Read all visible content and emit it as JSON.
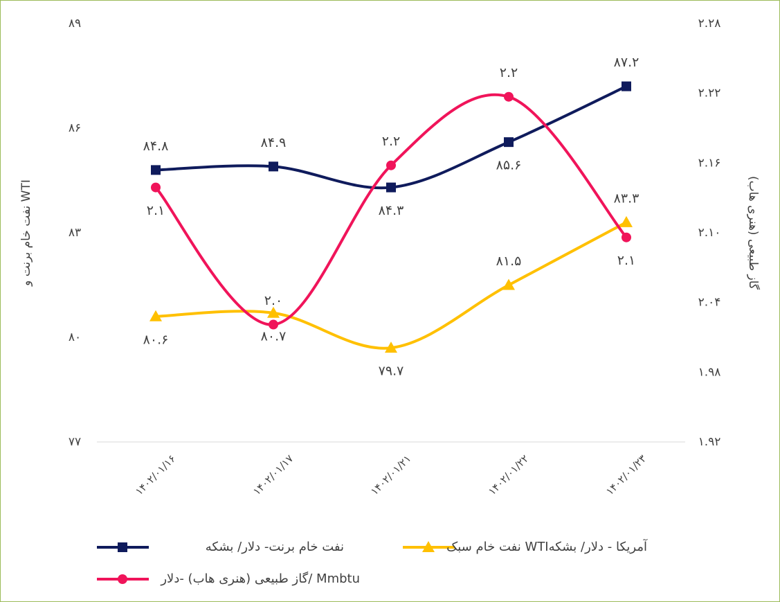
{
  "chart_data": {
    "type": "line",
    "categories": [
      "۱۴۰۲/۰۱/۱۶",
      "۱۴۰۲/۰۱/۱۷",
      "۱۴۰۲/۰۱/۲۱",
      "۱۴۰۲/۰۱/۲۲",
      "۱۴۰۲/۰۱/۲۳"
    ],
    "ylabel": "نفت خام برنت و WTI",
    "y2label": "گاز طبیعی (هنری هاب)",
    "ylim": [
      77,
      89
    ],
    "yticks": [
      {
        "value": 77,
        "label": "۷۷"
      },
      {
        "value": 80,
        "label": "۸۰"
      },
      {
        "value": 83,
        "label": "۸۳"
      },
      {
        "value": 86,
        "label": "۸۶"
      },
      {
        "value": 89,
        "label": "۸۹"
      }
    ],
    "y2lim": [
      1.92,
      2.28
    ],
    "y2ticks": [
      {
        "value": 1.92,
        "label": "۱.۹۲"
      },
      {
        "value": 1.98,
        "label": "۱.۹۸"
      },
      {
        "value": 2.04,
        "label": "۲.۰۴"
      },
      {
        "value": 2.1,
        "label": "۲.۱۰"
      },
      {
        "value": 2.16,
        "label": "۲.۱۶"
      },
      {
        "value": 2.22,
        "label": "۲.۲۲"
      },
      {
        "value": 2.28,
        "label": "۲.۲۸"
      }
    ],
    "series": [
      {
        "name": "نفت خام برنت- دلار/ بشکه",
        "color": "#0f1b5c",
        "marker": "square",
        "axis": "y",
        "values": [
          84.8,
          84.9,
          84.3,
          85.6,
          87.2
        ],
        "value_labels": [
          "۸۴.۸",
          "۸۴.۹",
          "۸۴.۳",
          "۸۵.۶",
          "۸۷.۲"
        ]
      },
      {
        "name": "نفت خام سبک WTIآمریکا - دلار/ بشکه",
        "color": "#ffc000",
        "marker": "triangle",
        "axis": "y",
        "values": [
          80.6,
          80.7,
          79.7,
          81.5,
          83.3
        ],
        "value_labels": [
          "۸۰.۶",
          "۸۰.۷",
          "۷۹.۷",
          "۸۱.۵",
          "۸۳.۳"
        ]
      },
      {
        "name": "گاز طبیعی (هنری هاب) -دلار/ Mmbtu",
        "color": "#f0145a",
        "marker": "circle",
        "axis": "y2",
        "values": [
          2.139,
          2.021,
          2.158,
          2.217,
          2.096
        ],
        "value_labels": [
          "۲.۱",
          "۲.۰",
          "۲.۲",
          "۲.۲",
          "۲.۱"
        ]
      }
    ]
  }
}
